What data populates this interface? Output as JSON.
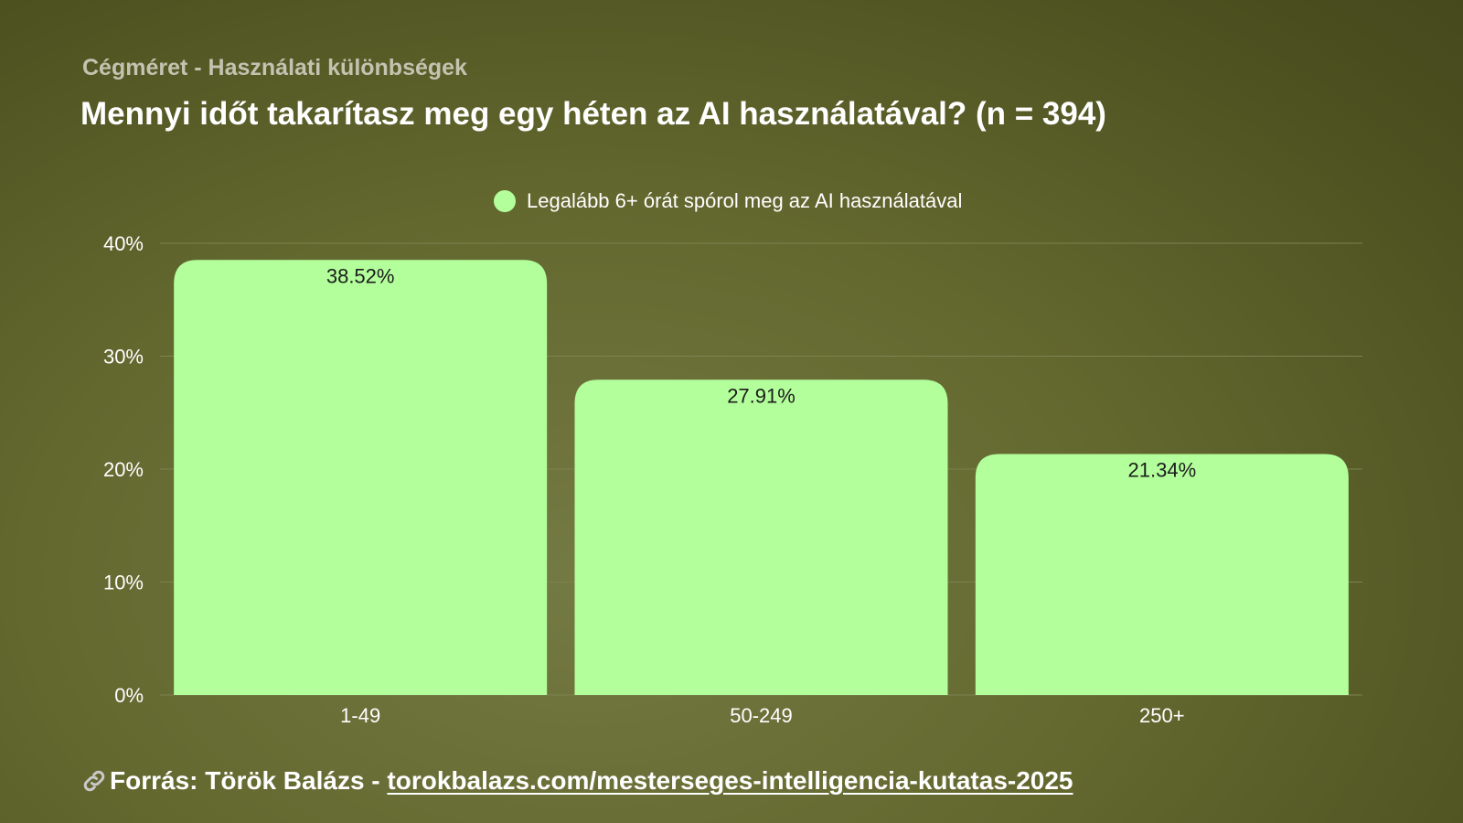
{
  "header": {
    "kicker": "Cégméret - Használati különbségek",
    "title": "Mennyi időt takarítasz meg egy héten az AI használatával? (n = 394)"
  },
  "colors": {
    "bar": "#b3ff9b",
    "grid": "#7d8250",
    "axis_text": "#ffffff",
    "label_text": "#1c1c1c"
  },
  "chart_data": {
    "type": "bar",
    "title": "Mennyi időt takarítasz meg egy héten az AI használatával? (n = 394)",
    "categories": [
      "1-49",
      "50-249",
      "250+"
    ],
    "series": [
      {
        "name": "Legalább 6+ órát spórol meg az AI használatával",
        "values": [
          38.52,
          27.91,
          21.34
        ],
        "labels": [
          "38.52%",
          "27.91%",
          "21.34%"
        ]
      }
    ],
    "ylim": [
      0,
      40
    ],
    "yticks": [
      0,
      10,
      20,
      30,
      40
    ],
    "ytick_labels": [
      "0%",
      "10%",
      "20%",
      "30%",
      "40%"
    ],
    "xlabel": "",
    "ylabel": "",
    "grid": true,
    "legend_position": "top-center"
  },
  "footer": {
    "prefix": "Forrás: Török Balázs - ",
    "link_text": "torokbalazs.com/mesterseges-intelligencia-kutatas-2025",
    "icon": "link-icon"
  }
}
